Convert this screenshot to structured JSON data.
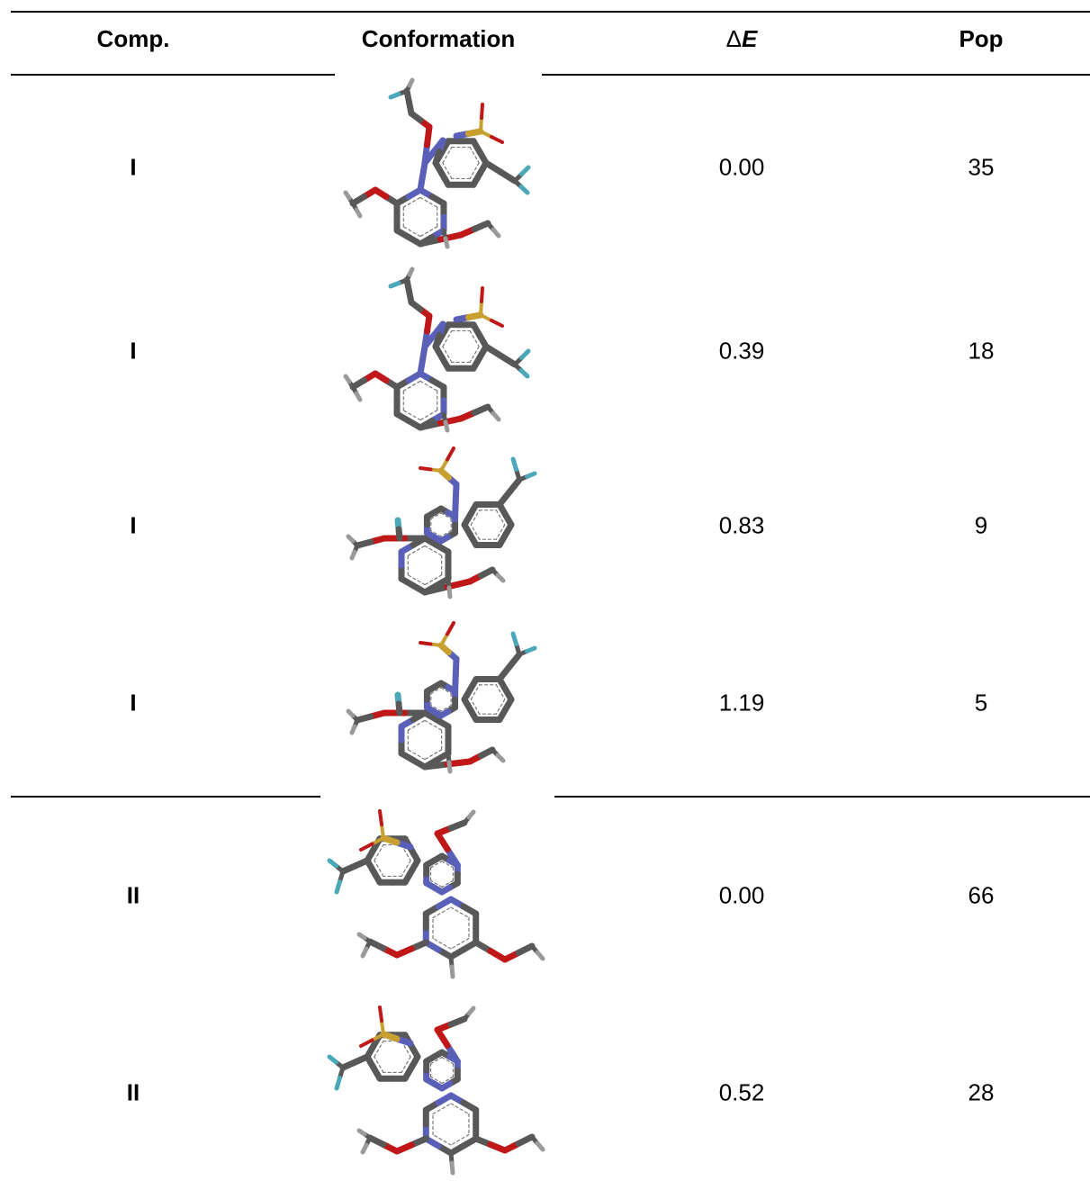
{
  "table": {
    "headers": {
      "comp": "Comp.",
      "conformation": "Conformation",
      "delta_symbol": "Δ",
      "delta_var": "E",
      "pop": "Pop"
    },
    "rows": [
      {
        "comp": "I",
        "delta_e": "0.00",
        "pop": "35"
      },
      {
        "comp": "I",
        "delta_e": "0.39",
        "pop": "18"
      },
      {
        "comp": "I",
        "delta_e": "0.83",
        "pop": "9"
      },
      {
        "comp": "I",
        "delta_e": "1.19",
        "pop": "5"
      },
      {
        "comp": "II",
        "delta_e": "0.00",
        "pop": "66"
      },
      {
        "comp": "II",
        "delta_e": "0.52",
        "pop": "28"
      }
    ]
  },
  "colors": {
    "carbon": "#585858",
    "hydrogen": "#9a9a9a",
    "nitrogen": "#5a5fb8",
    "oxygen": "#c01818",
    "sulfur": "#c8a030",
    "fluorine": "#4aa8b8"
  }
}
